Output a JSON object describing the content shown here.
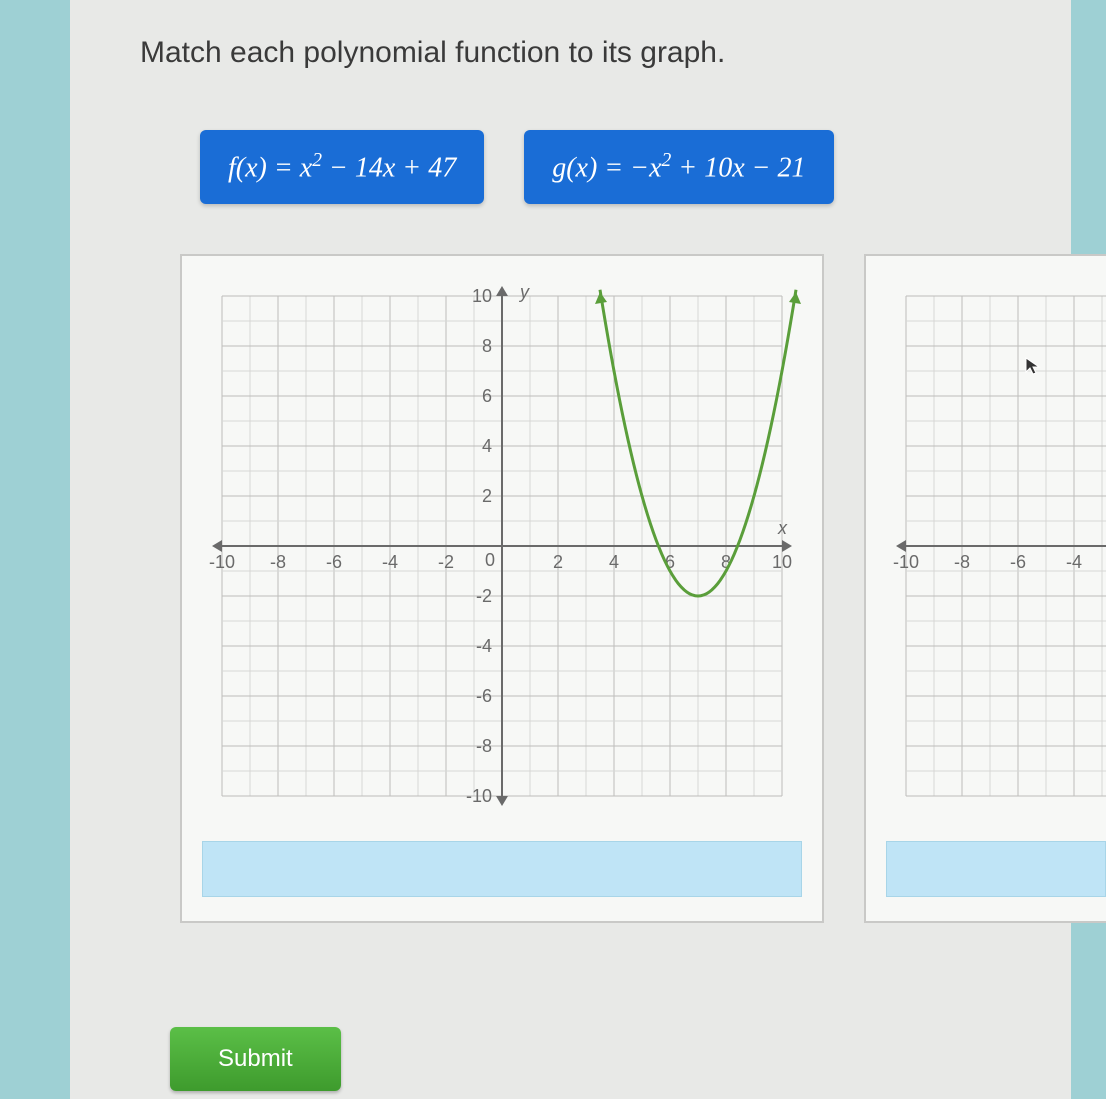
{
  "question": "Match each polynomial function to its graph.",
  "tiles": [
    {
      "id": "tile-f",
      "html": "f(x) = x<sup>2</sup> − 14x + 47"
    },
    {
      "id": "tile-g",
      "html": "g(x) = −x<sup>2</sup> + 10x − 21"
    }
  ],
  "submit_label": "Submit",
  "chart": {
    "type": "cartesian-grid-with-parabola",
    "xlim": [
      -10,
      10
    ],
    "ylim": [
      -10,
      10
    ],
    "tick_step": 2,
    "x_ticks": [
      -10,
      -8,
      -6,
      -4,
      -2,
      0,
      2,
      4,
      6,
      8,
      10
    ],
    "y_ticks": [
      -10,
      -8,
      -6,
      -4,
      -2,
      2,
      4,
      6,
      8,
      10
    ],
    "minor_grid": true,
    "grid_color": "#bdbdbb",
    "minor_grid_color": "#d7d7d5",
    "axis_color": "#6a6a6a",
    "axis_arrow": true,
    "x_label": "x",
    "y_label": "y",
    "tick_fontsize": 18,
    "label_fontsize": 18,
    "curve": {
      "color": "#5a9e3a",
      "width": 3,
      "vertex": [
        7,
        -2
      ],
      "a": 1,
      "x_range": [
        3.5,
        10.5
      ],
      "arrowheads": true
    },
    "background": "#f7f8f6"
  },
  "chart_partial": {
    "x_ticks_visible": [
      -10,
      -8,
      -6,
      -4
    ],
    "grid_color": "#bdbdbb",
    "minor_grid_color": "#d7d7d5",
    "axis_color": "#6a6a6a",
    "background": "#f7f8f6"
  },
  "colors": {
    "page_bg": "#e8e9e7",
    "body_bg": "#9ed0d4",
    "tile_bg": "#1a6dd6",
    "tile_text": "#ffffff",
    "dropzone_bg": "#bfe4f6",
    "submit_bg": "#4cae3a",
    "submit_text": "#ffffff",
    "text": "#3a3a3a"
  }
}
